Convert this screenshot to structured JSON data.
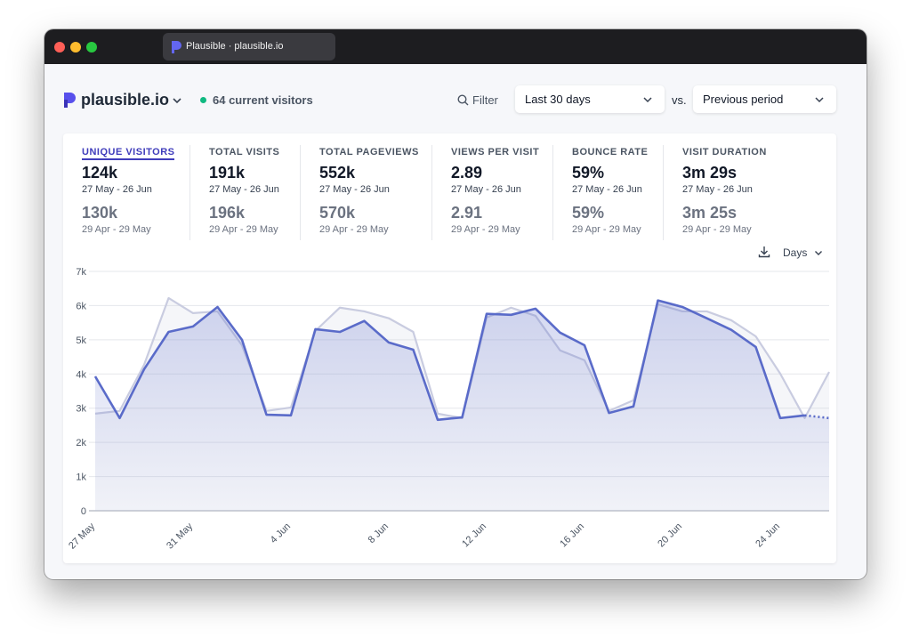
{
  "window": {
    "tab_title": "Plausible · plausible.io"
  },
  "header": {
    "site": "plausible.io",
    "current_visitors": "64 current visitors",
    "filter": "Filter",
    "period": "Last 30 days",
    "vs": "vs.",
    "comparison": "Previous period"
  },
  "metrics": [
    {
      "label": "UNIQUE VISITORS",
      "value": "124k",
      "range": "27 May - 26 Jun",
      "prev_value": "130k",
      "prev_range": "29 Apr - 29 May"
    },
    {
      "label": "TOTAL VISITS",
      "value": "191k",
      "range": "27 May - 26 Jun",
      "prev_value": "196k",
      "prev_range": "29 Apr - 29 May"
    },
    {
      "label": "TOTAL PAGEVIEWS",
      "value": "552k",
      "range": "27 May - 26 Jun",
      "prev_value": "570k",
      "prev_range": "29 Apr - 29 May"
    },
    {
      "label": "VIEWS PER VISIT",
      "value": "2.89",
      "range": "27 May - 26 Jun",
      "prev_value": "2.91",
      "prev_range": "29 Apr - 29 May"
    },
    {
      "label": "BOUNCE RATE",
      "value": "59%",
      "range": "27 May - 26 Jun",
      "prev_value": "59%",
      "prev_range": "29 Apr - 29 May"
    },
    {
      "label": "VISIT DURATION",
      "value": "3m 29s",
      "range": "27 May - 26 Jun",
      "prev_value": "3m 25s",
      "prev_range": "29 Apr - 29 May"
    }
  ],
  "interval": "Days",
  "chart_data": {
    "type": "line",
    "categories": [
      "27 May",
      null,
      null,
      null,
      "31 May",
      null,
      null,
      null,
      "4 Jun",
      null,
      null,
      null,
      "8 Jun",
      null,
      null,
      null,
      "12 Jun",
      null,
      null,
      null,
      "16 Jun",
      null,
      null,
      null,
      "20 Jun",
      null,
      null,
      null,
      "24 Jun",
      null,
      null
    ],
    "series": [
      {
        "color": "#c9cce0",
        "values": [
          2840,
          2920,
          4270,
          6220,
          5780,
          5830,
          4840,
          2920,
          3020,
          5260,
          5940,
          5830,
          5630,
          5230,
          2840,
          2710,
          5650,
          5940,
          5700,
          4690,
          4400,
          2920,
          3230,
          6040,
          5830,
          5830,
          5570,
          5100,
          4010,
          2710,
          4060
        ]
      },
      {
        "color": "#5a6bc9",
        "values": [
          3930,
          2710,
          4140,
          5230,
          5390,
          5960,
          5000,
          2810,
          2790,
          5310,
          5230,
          5550,
          4920,
          4710,
          2660,
          2730,
          5760,
          5730,
          5910,
          5210,
          4840,
          2860,
          3050,
          6150,
          5960,
          5630,
          5290,
          4790,
          2710,
          2790,
          2710
        ]
      }
    ],
    "ylim": [
      0,
      7000
    ],
    "yticks": [
      0,
      {
        "value": 1000,
        "label": "1k"
      },
      {
        "value": 2000,
        "label": "2k"
      },
      {
        "value": 3000,
        "label": "3k"
      },
      {
        "value": 4000,
        "label": "4k"
      },
      {
        "value": 5000,
        "label": "5k"
      },
      {
        "value": 6000,
        "label": "6k"
      },
      {
        "value": 7000,
        "label": "7k"
      }
    ],
    "grid": true
  }
}
